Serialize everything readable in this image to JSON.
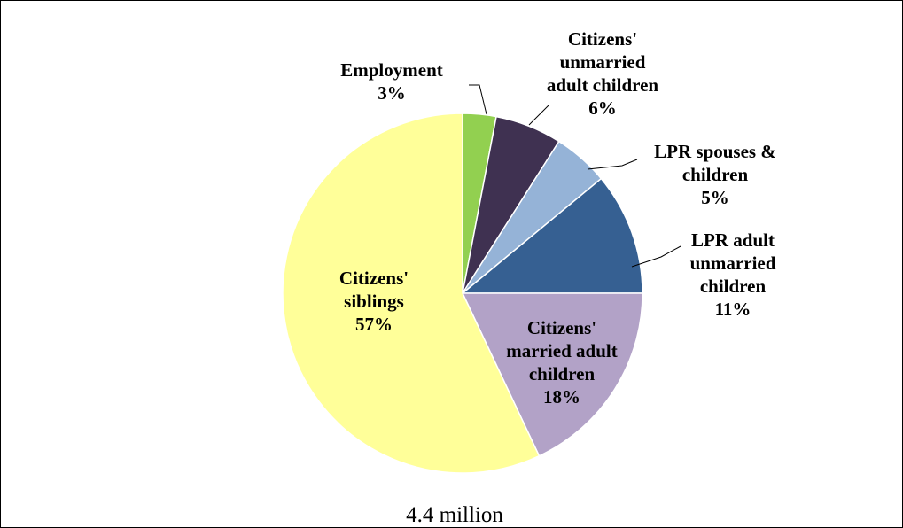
{
  "chart_data": {
    "type": "pie",
    "total_label": "4.4 million",
    "start_angle_deg": 0,
    "direction": "clockwise",
    "slices": [
      {
        "label_lines": [
          "Employment",
          "3%"
        ],
        "value": 3,
        "color": "#92d050"
      },
      {
        "label_lines": [
          "Citizens'",
          "unmarried",
          "adult children",
          "6%"
        ],
        "value": 6,
        "color": "#3f3151"
      },
      {
        "label_lines": [
          "LPR spouses &",
          "children",
          "5%"
        ],
        "value": 5,
        "color": "#95b3d7"
      },
      {
        "label_lines": [
          "LPR adult",
          "unmarried",
          "children",
          "11%"
        ],
        "value": 11,
        "color": "#366092"
      },
      {
        "label_lines": [
          "Citizens'",
          "married adult",
          "children",
          "18%"
        ],
        "value": 18,
        "color": "#b2a2c7"
      },
      {
        "label_lines": [
          "Citizens'",
          "siblings",
          "57%"
        ],
        "value": 57,
        "color": "#ffff99"
      }
    ]
  }
}
